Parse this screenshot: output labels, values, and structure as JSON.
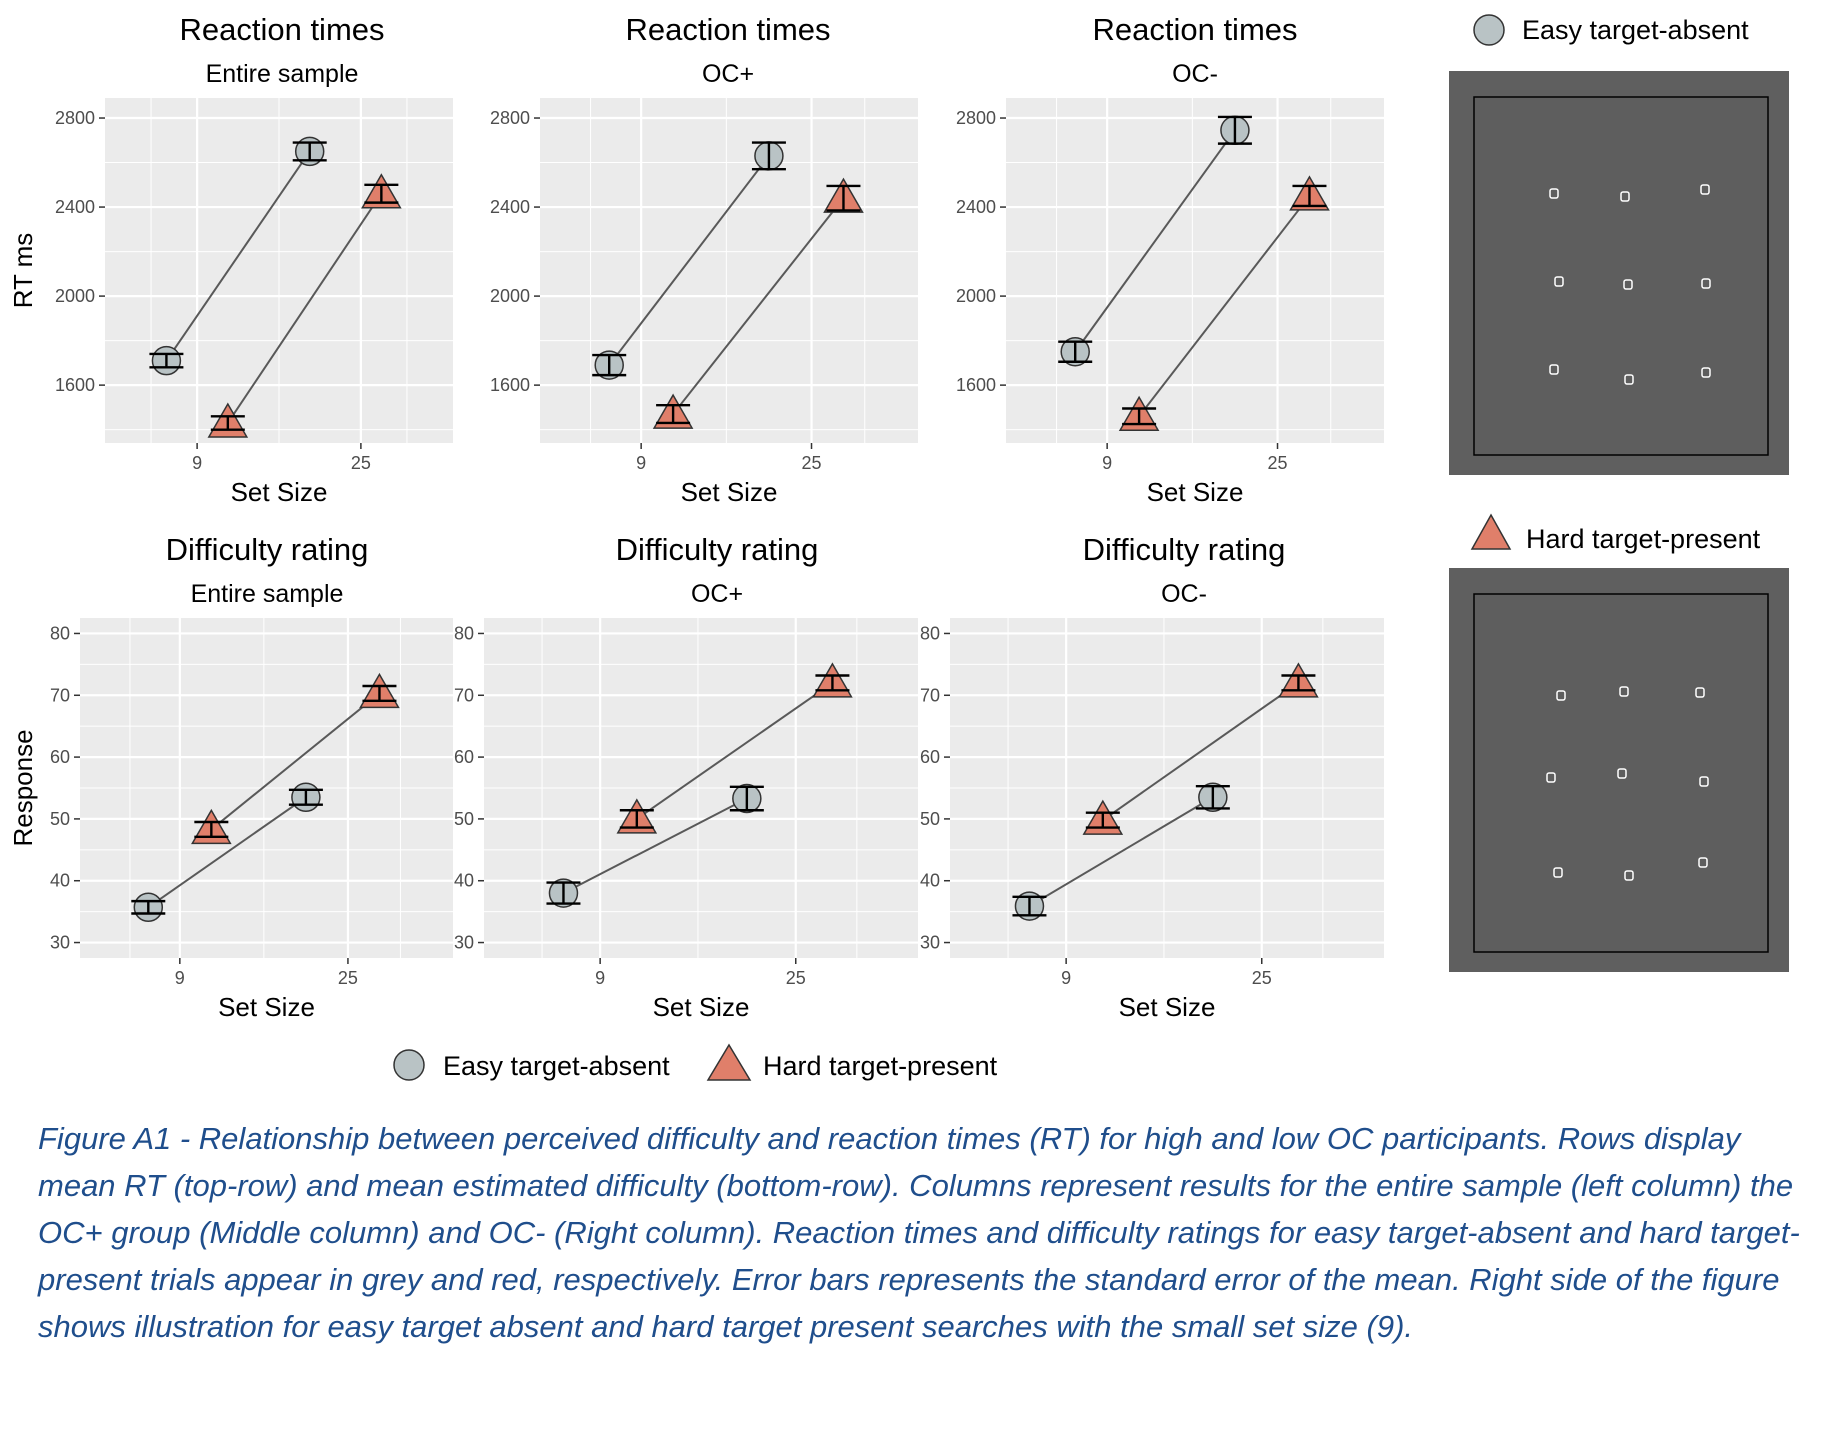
{
  "legend": {
    "easy_label": "Easy target-absent",
    "hard_label": "Hard target-present"
  },
  "colors": {
    "easy": "#b9c3c5",
    "hard": "#e07f6a",
    "panel_bg": "#ebebeb",
    "gridline": "#ffffff",
    "line": "#595959",
    "stim_outer": "#5f5f5f",
    "stim_inner": "#5e5e5e"
  },
  "illustrations": [
    {
      "legend_label": "Easy target-absent",
      "marker": "circle"
    },
    {
      "legend_label": "Hard target-present",
      "marker": "triangle"
    }
  ],
  "chart_data": [
    {
      "type": "line",
      "title": "Reaction times",
      "subtitle": "Entire sample",
      "xlabel": "Set Size",
      "ylabel": "RT ms",
      "x_ticks": [
        9,
        25
      ],
      "xlim": [
        0,
        34
      ],
      "y_ticks": [
        1600,
        2000,
        2400,
        2800
      ],
      "ylim": [
        1340,
        2890
      ],
      "grid": true,
      "series": [
        {
          "name": "Easy target-absent",
          "marker": "circle",
          "x": [
            6,
            20
          ],
          "y": [
            1710,
            2650
          ],
          "err": [
            30,
            40
          ]
        },
        {
          "name": "Hard target-present",
          "marker": "triangle",
          "x": [
            12,
            27
          ],
          "y": [
            1430,
            2460
          ],
          "err": [
            30,
            40
          ]
        }
      ]
    },
    {
      "type": "line",
      "title": "Reaction times",
      "subtitle": "OC+",
      "xlabel": "Set Size",
      "ylabel": "",
      "x_ticks": [
        9,
        25
      ],
      "xlim": [
        -0.5,
        35
      ],
      "y_ticks": [
        1600,
        2000,
        2400,
        2800
      ],
      "ylim": [
        1340,
        2890
      ],
      "grid": true,
      "series": [
        {
          "name": "Easy target-absent",
          "marker": "circle",
          "x": [
            6,
            21
          ],
          "y": [
            1690,
            2630
          ],
          "err": [
            45,
            60
          ]
        },
        {
          "name": "Hard target-present",
          "marker": "triangle",
          "x": [
            12,
            28
          ],
          "y": [
            1470,
            2440
          ],
          "err": [
            40,
            55
          ]
        }
      ]
    },
    {
      "type": "line",
      "title": "Reaction times",
      "subtitle": "OC-",
      "xlabel": "Set Size",
      "ylabel": "",
      "x_ticks": [
        9,
        25
      ],
      "xlim": [
        -0.5,
        35
      ],
      "y_ticks": [
        1600,
        2000,
        2400,
        2800
      ],
      "ylim": [
        1340,
        2890
      ],
      "grid": true,
      "series": [
        {
          "name": "Easy target-absent",
          "marker": "circle",
          "x": [
            6,
            21
          ],
          "y": [
            1750,
            2745
          ],
          "err": [
            45,
            60
          ]
        },
        {
          "name": "Hard target-present",
          "marker": "triangle",
          "x": [
            12,
            28
          ],
          "y": [
            1460,
            2450
          ],
          "err": [
            35,
            45
          ]
        }
      ]
    },
    {
      "type": "line",
      "title": "Difficulty rating",
      "subtitle": "Entire sample",
      "xlabel": "Set Size",
      "ylabel": "Response",
      "x_ticks": [
        9,
        25
      ],
      "xlim": [
        -0.5,
        35
      ],
      "y_ticks": [
        30,
        40,
        50,
        60,
        70,
        80
      ],
      "ylim": [
        27.5,
        82.5
      ],
      "grid": true,
      "series": [
        {
          "name": "Easy target-absent",
          "marker": "circle",
          "x": [
            6,
            21
          ],
          "y": [
            35.7,
            53.5
          ],
          "err": [
            1.0,
            1.2
          ]
        },
        {
          "name": "Hard target-present",
          "marker": "triangle",
          "x": [
            12,
            28
          ],
          "y": [
            48.3,
            70.3
          ],
          "err": [
            1.2,
            1.2
          ]
        }
      ]
    },
    {
      "type": "line",
      "title": "Difficulty rating",
      "subtitle": "OC+",
      "xlabel": "Set Size",
      "ylabel": "",
      "x_ticks": [
        9,
        25
      ],
      "xlim": [
        -0.5,
        35
      ],
      "y_ticks": [
        30,
        40,
        50,
        60,
        70,
        80
      ],
      "ylim": [
        27.5,
        82.5
      ],
      "grid": true,
      "series": [
        {
          "name": "Easy target-absent",
          "marker": "circle",
          "x": [
            6,
            21
          ],
          "y": [
            38.0,
            53.3
          ],
          "err": [
            1.7,
            1.9
          ]
        },
        {
          "name": "Hard target-present",
          "marker": "triangle",
          "x": [
            12,
            28
          ],
          "y": [
            50.0,
            72.0
          ],
          "err": [
            1.4,
            1.2
          ]
        }
      ]
    },
    {
      "type": "line",
      "title": "Difficulty rating",
      "subtitle": "OC-",
      "xlabel": "Set Size",
      "ylabel": "",
      "x_ticks": [
        9,
        25
      ],
      "xlim": [
        -0.5,
        35
      ],
      "y_ticks": [
        30,
        40,
        50,
        60,
        70,
        80
      ],
      "ylim": [
        27.5,
        82.5
      ],
      "grid": true,
      "series": [
        {
          "name": "Easy target-absent",
          "marker": "circle",
          "x": [
            6,
            21
          ],
          "y": [
            35.9,
            53.5
          ],
          "err": [
            1.5,
            1.8
          ]
        },
        {
          "name": "Hard target-present",
          "marker": "triangle",
          "x": [
            12,
            28
          ],
          "y": [
            49.8,
            72.0
          ],
          "err": [
            1.2,
            1.2
          ]
        }
      ]
    }
  ],
  "caption": "Figure A1 - Relationship between perceived difficulty and reaction times (RT) for high and low OC participants. Rows display mean RT (top-row) and mean estimated difficulty (bottom-row). Columns represent results for the entire sample (left column) the OC+ group (Middle column) and OC- (Right column). Reaction times and difficulty ratings for easy target-absent and hard target-present trials appear in grey and red, respectively. Error bars represents the standard error of the mean. Right side of the figure shows illustration for easy target absent and hard target present searches with the small set size (9)."
}
